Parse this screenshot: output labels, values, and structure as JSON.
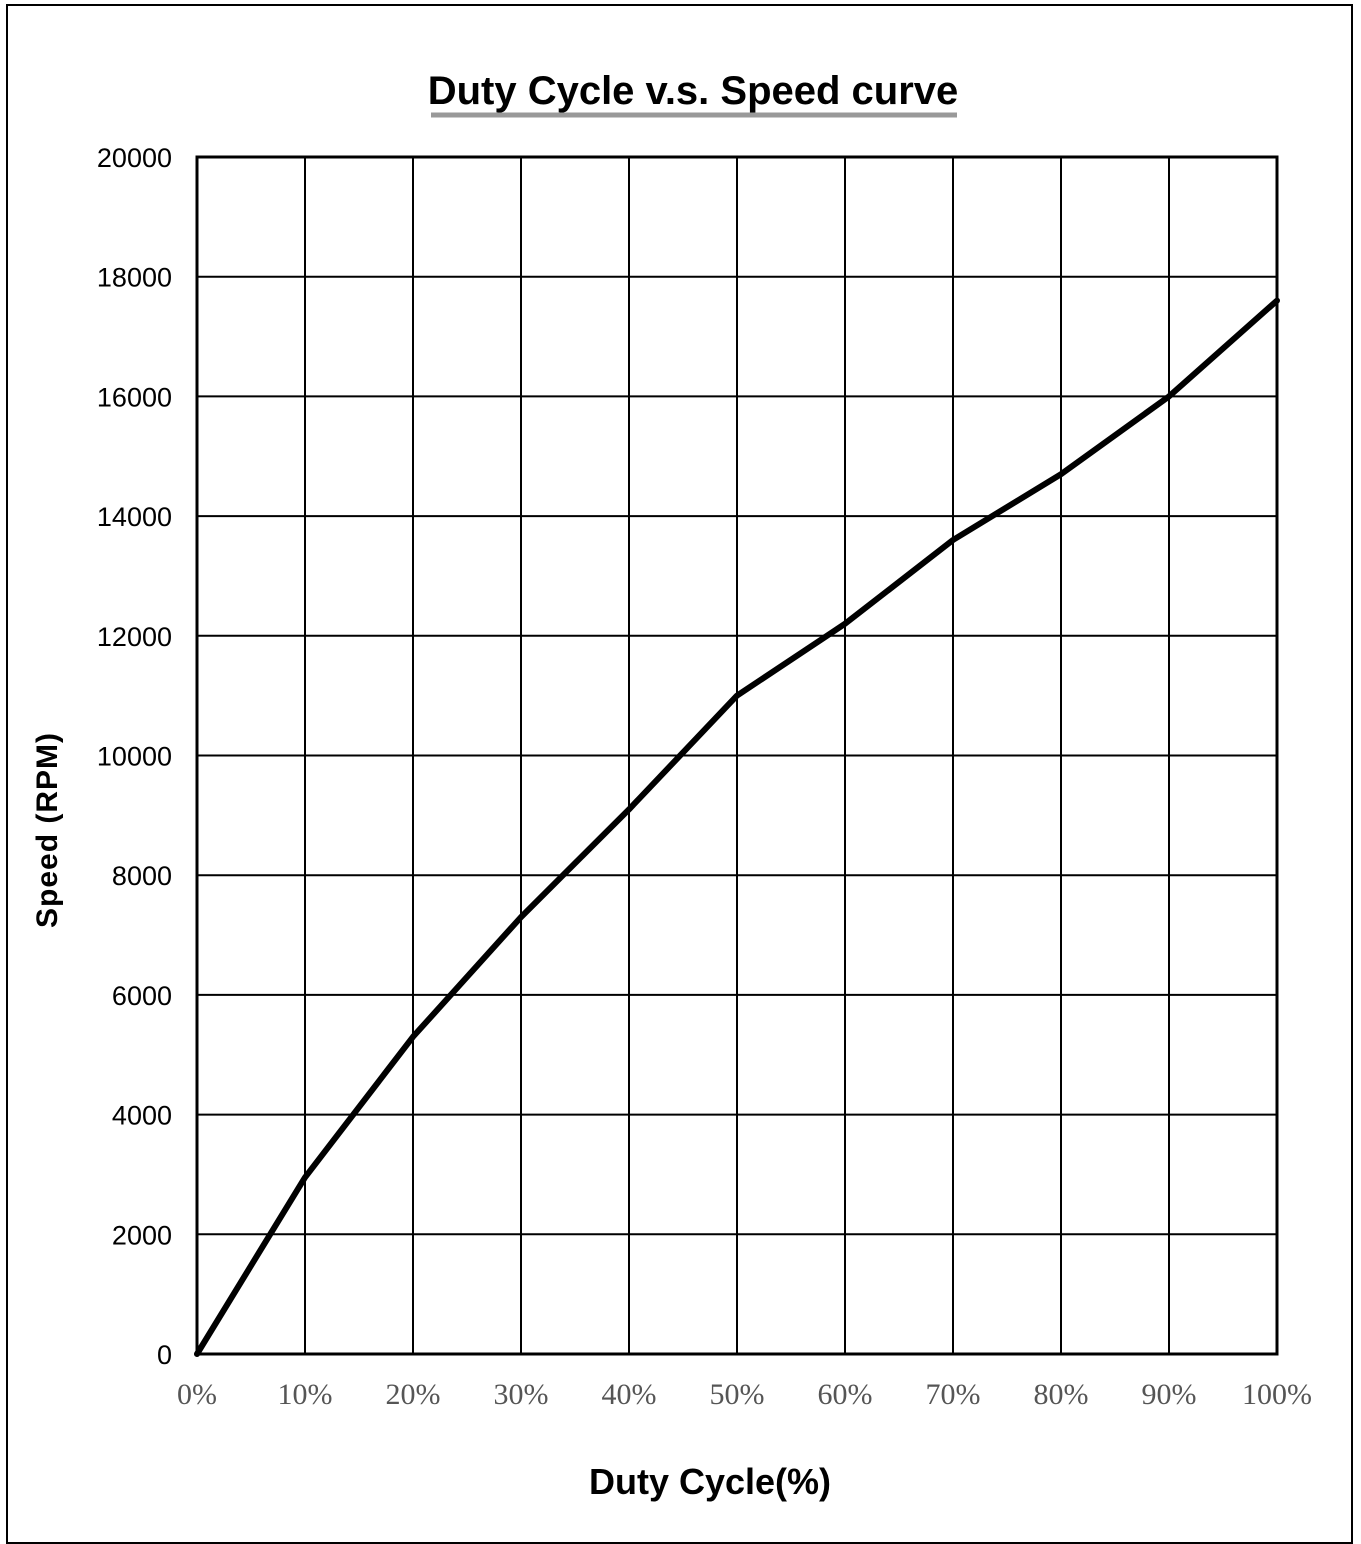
{
  "chart_data": {
    "type": "line",
    "title": "Duty  Cycle v.s. Speed curve",
    "xlabel": "Duty Cycle(%)",
    "ylabel": "Speed (RPM)",
    "x": [
      0,
      10,
      20,
      30,
      40,
      50,
      60,
      70,
      80,
      90,
      100
    ],
    "x_tick_labels": [
      "0%",
      "10%",
      "20%",
      "30%",
      "40%",
      "50%",
      "60%",
      "70%",
      "80%",
      "90%",
      "100%"
    ],
    "y_ticks": [
      0,
      2000,
      4000,
      6000,
      8000,
      10000,
      12000,
      14000,
      16000,
      18000,
      20000
    ],
    "xlim": [
      0,
      100
    ],
    "ylim": [
      0,
      20000
    ],
    "grid": true,
    "series": [
      {
        "values": [
          0,
          2950,
          5300,
          7300,
          9100,
          11000,
          12200,
          13600,
          14700,
          16000,
          17600
        ]
      }
    ],
    "line_color": "#000000"
  }
}
